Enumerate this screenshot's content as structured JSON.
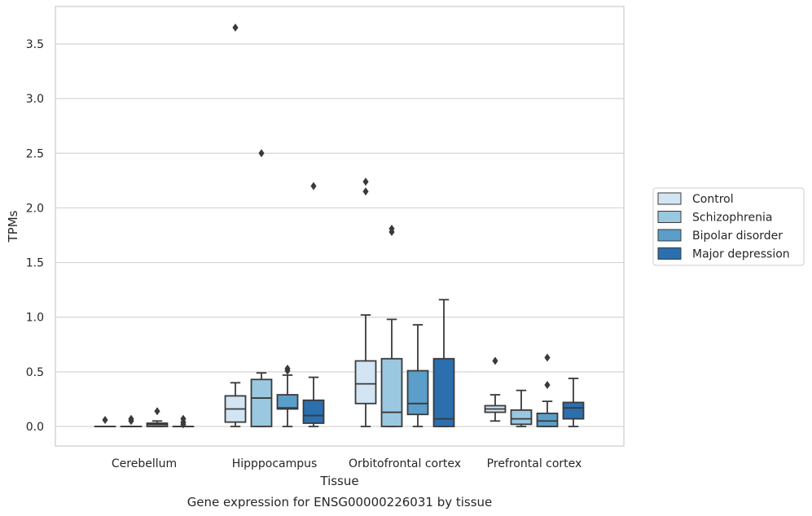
{
  "chart_data": {
    "type": "boxplot",
    "xlabel": "Tissue",
    "ylabel": "TPMs",
    "caption": "Gene expression for ENSG00000226031 by tissue",
    "ylim": [
      -0.18,
      3.85
    ],
    "yticks": [
      "0.0",
      "0.5",
      "1.0",
      "1.5",
      "2.0",
      "2.5",
      "3.0",
      "3.5"
    ],
    "grid": "horizontal",
    "legend_position": "right",
    "categories": [
      "Cerebellum",
      "Hipppocampus",
      "Orbitofrontal cortex",
      "Prefrontal cortex"
    ],
    "series": [
      {
        "name": "Control",
        "color": "#d3e4f3",
        "boxes": [
          {
            "whislo": 0.0,
            "q1": 0.0,
            "med": 0.0,
            "q3": 0.0,
            "whishi": 0.0,
            "fliers": [
              0.06
            ]
          },
          {
            "whislo": 0.0,
            "q1": 0.04,
            "med": 0.16,
            "q3": 0.28,
            "whishi": 0.4,
            "fliers": [
              3.65
            ]
          },
          {
            "whislo": 0.0,
            "q1": 0.21,
            "med": 0.39,
            "q3": 0.6,
            "whishi": 1.02,
            "fliers": [
              2.24,
              2.15
            ]
          },
          {
            "whislo": 0.05,
            "q1": 0.13,
            "med": 0.16,
            "q3": 0.19,
            "whishi": 0.29,
            "fliers": [
              0.6
            ]
          }
        ]
      },
      {
        "name": "Schizophrenia",
        "color": "#9ac8e0",
        "boxes": [
          {
            "whislo": 0.0,
            "q1": 0.0,
            "med": 0.0,
            "q3": 0.0,
            "whishi": 0.0,
            "fliers": [
              0.07,
              0.05
            ]
          },
          {
            "whislo": 0.0,
            "q1": 0.0,
            "med": 0.26,
            "q3": 0.43,
            "whishi": 0.49,
            "fliers": [
              2.5
            ]
          },
          {
            "whislo": 0.0,
            "q1": 0.0,
            "med": 0.13,
            "q3": 0.62,
            "whishi": 0.98,
            "fliers": [
              1.81,
              1.78
            ]
          },
          {
            "whislo": 0.0,
            "q1": 0.02,
            "med": 0.07,
            "q3": 0.15,
            "whishi": 0.33,
            "fliers": []
          }
        ]
      },
      {
        "name": "Bipolar disorder",
        "color": "#5a9ec9",
        "boxes": [
          {
            "whislo": 0.0,
            "q1": 0.0,
            "med": 0.02,
            "q3": 0.03,
            "whishi": 0.05,
            "fliers": [
              0.14
            ]
          },
          {
            "whislo": 0.0,
            "q1": 0.16,
            "med": 0.17,
            "q3": 0.29,
            "whishi": 0.47,
            "fliers": [
              0.53,
              0.51
            ]
          },
          {
            "whislo": 0.0,
            "q1": 0.11,
            "med": 0.21,
            "q3": 0.51,
            "whishi": 0.93,
            "fliers": []
          },
          {
            "whislo": 0.0,
            "q1": 0.0,
            "med": 0.05,
            "q3": 0.12,
            "whishi": 0.23,
            "fliers": [
              0.63,
              0.38
            ]
          }
        ]
      },
      {
        "name": "Major depression",
        "color": "#2b6faf",
        "boxes": [
          {
            "whislo": 0.0,
            "q1": 0.0,
            "med": 0.0,
            "q3": 0.0,
            "whishi": 0.0,
            "fliers": [
              0.07,
              0.04,
              0.02
            ]
          },
          {
            "whislo": 0.0,
            "q1": 0.03,
            "med": 0.1,
            "q3": 0.24,
            "whishi": 0.45,
            "fliers": [
              2.2
            ]
          },
          {
            "whislo": 0.0,
            "q1": 0.0,
            "med": 0.07,
            "q3": 0.62,
            "whishi": 1.16,
            "fliers": []
          },
          {
            "whislo": 0.0,
            "q1": 0.07,
            "med": 0.17,
            "q3": 0.22,
            "whishi": 0.44,
            "fliers": []
          }
        ]
      }
    ]
  }
}
